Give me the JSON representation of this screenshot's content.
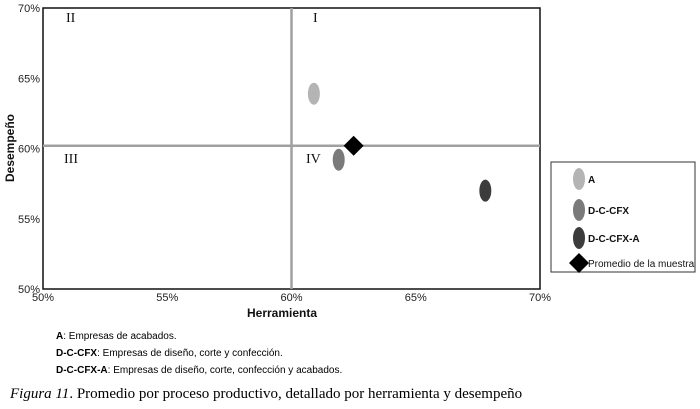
{
  "chart_data": {
    "type": "scatter",
    "xlabel": "Herramienta",
    "ylabel": "Desempeño",
    "xlim": [
      0.5,
      0.7
    ],
    "ylim": [
      0.5,
      0.7
    ],
    "x_ticks": [
      "50%",
      "55%",
      "60%",
      "65%",
      "70%"
    ],
    "y_ticks": [
      "50%",
      "55%",
      "60%",
      "65%",
      "70%"
    ],
    "grid": false,
    "quadrant_dividers": {
      "x": 0.6,
      "y": 0.602
    },
    "quadrants": [
      "I",
      "II",
      "III",
      "IV"
    ],
    "series": [
      {
        "name": "A",
        "x": 0.609,
        "y": 0.639,
        "color": "#b4b4b4",
        "marker": "ellipse"
      },
      {
        "name": "D-C-CFX",
        "x": 0.619,
        "y": 0.592,
        "color": "#7a7a7a",
        "marker": "ellipse"
      },
      {
        "name": "D-C-CFX-A",
        "x": 0.678,
        "y": 0.57,
        "color": "#3c3c3c",
        "marker": "ellipse"
      },
      {
        "name": "Promedio de la muestra",
        "x": 0.625,
        "y": 0.602,
        "color": "#000000",
        "marker": "diamond"
      }
    ],
    "legend_position": "right"
  },
  "notes": [
    {
      "key": "A",
      "text": ": Empresas de acabados."
    },
    {
      "key": "D-C-CFX",
      "text": ": Empresas de diseño, corte y confección."
    },
    {
      "key": "D-C-CFX-A",
      "text": ": Empresas de diseño, corte, confección y acabados."
    }
  ],
  "caption": {
    "label": "Figura 11",
    "text": ". Promedio por proceso productivo, detallado por herramienta y desempeño"
  }
}
